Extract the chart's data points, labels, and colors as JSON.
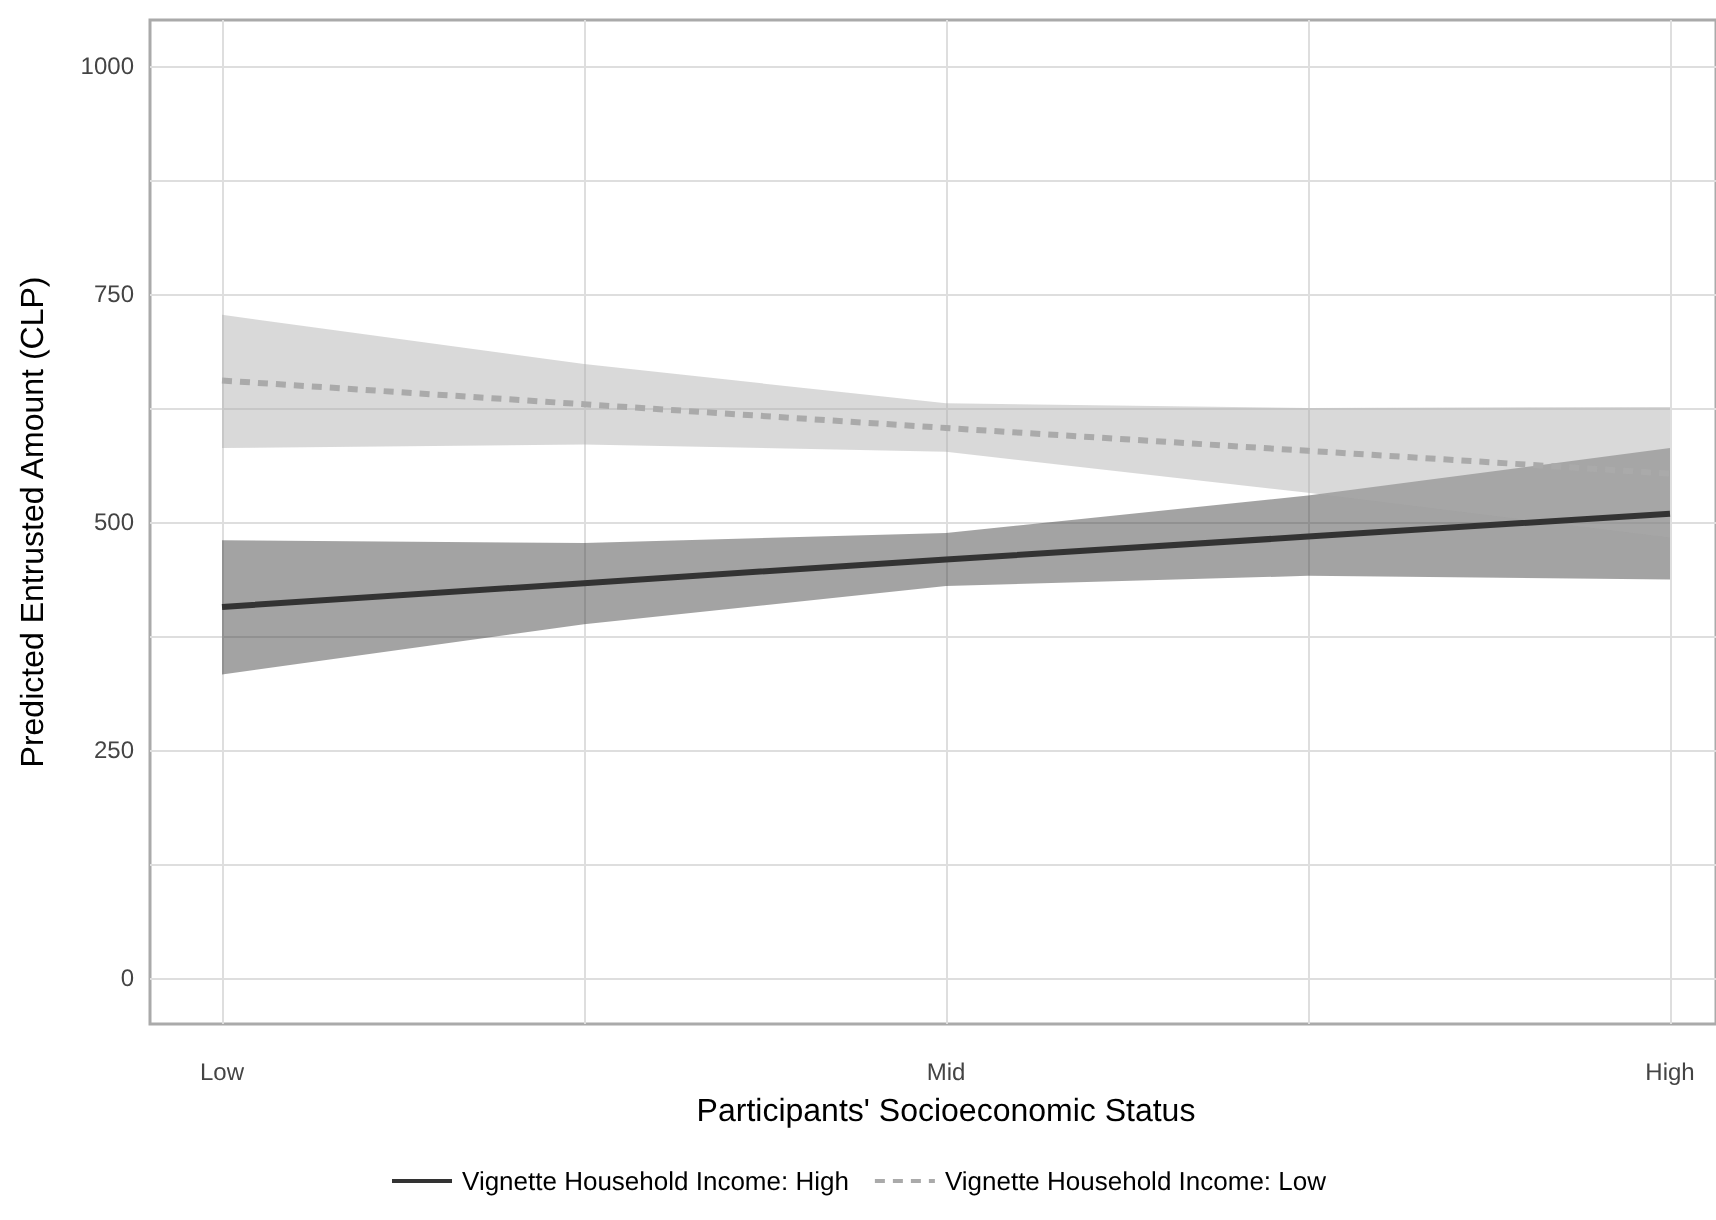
{
  "chart_data": {
    "type": "line",
    "xlabel": "Participants' Socioeconomic Status",
    "ylabel": "Predicted Entrusted Amount (CLP)",
    "categories": [
      "Low",
      null,
      "Mid",
      null,
      "High"
    ],
    "ylim": [
      -50,
      1050
    ],
    "yticks": [
      0,
      {
        "value": 125,
        "label": null
      },
      250,
      {
        "value": 375,
        "label": null
      },
      500,
      {
        "value": 625,
        "label": null
      },
      750,
      {
        "value": 875,
        "label": null
      },
      1000
    ],
    "grid": true,
    "legend": "bottom",
    "marker": "none",
    "series": [
      {
        "name": "Vignette Household Income: High",
        "color": "#333333",
        "line_style": "solid",
        "values": [
          407,
          433,
          459,
          484,
          509
        ],
        "lower": [
          333,
          388,
          430,
          441,
          437
        ],
        "upper": [
          480,
          477,
          488,
          529,
          581
        ]
      },
      {
        "name": "Vignette Household Income: Low",
        "color": "#aaaaaa",
        "line_style": "dashed",
        "values": [
          655,
          629,
          603,
          578,
          553
        ],
        "lower": [
          581,
          585,
          577,
          532,
          483
        ],
        "upper": [
          727,
          673,
          630,
          625,
          626
        ]
      }
    ]
  }
}
